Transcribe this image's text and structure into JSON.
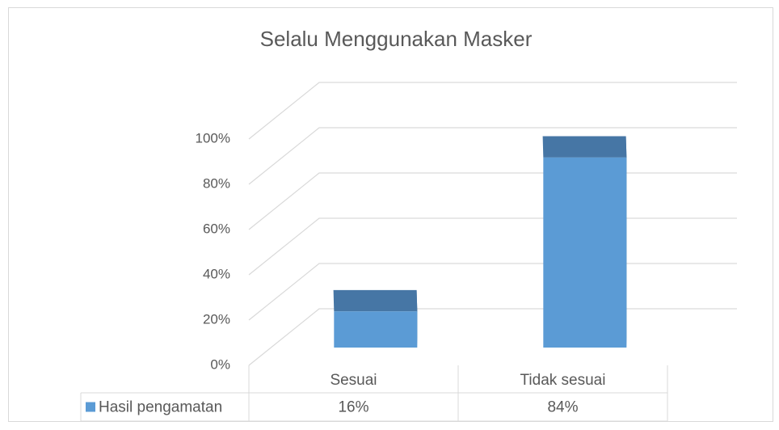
{
  "chart_data": {
    "type": "bar3d",
    "title": "Selalu Menggunakan Masker",
    "categories": [
      "Sesuai",
      "Tidak sesuai"
    ],
    "series": [
      {
        "name": "Hasil pengamatan",
        "color": "#5b9bd5",
        "values": [
          16,
          84
        ],
        "value_labels": [
          "16%",
          "84%"
        ]
      }
    ],
    "ylim": [
      0,
      100
    ],
    "yticks": [
      {
        "value": 0,
        "label": "0%"
      },
      {
        "value": 20,
        "label": "20%"
      },
      {
        "value": 40,
        "label": "40%"
      },
      {
        "value": 60,
        "label": "60%"
      },
      {
        "value": 80,
        "label": "80%"
      },
      {
        "value": 100,
        "label": "100%"
      }
    ],
    "grid": true,
    "data_table": true
  }
}
